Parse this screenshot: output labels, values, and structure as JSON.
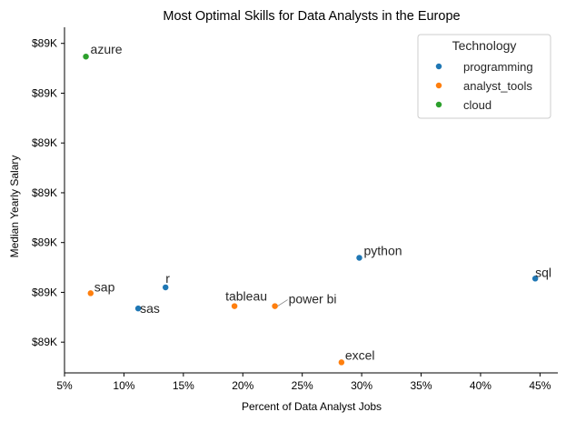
{
  "chart_data": {
    "type": "scatter",
    "title": "Most Optimal Skills for Data Analysts in the Europe",
    "xlabel": "Percent of Data Analyst Jobs",
    "ylabel": "Median Yearly Salary",
    "xlim": [
      5,
      46.5
    ],
    "x_ticks": [
      5,
      10,
      15,
      20,
      25,
      30,
      35,
      40,
      45
    ],
    "x_tick_labels": [
      "5%",
      "10%",
      "15%",
      "20%",
      "25%",
      "30%",
      "35%",
      "40%",
      "45%"
    ],
    "ylim": [
      0,
      100
    ],
    "y_ticks": [
      10.5,
      27.5,
      44.5,
      61.5,
      78.5,
      95.5,
      112.5
    ],
    "y_tick_labels": [
      "$89K",
      "$89K",
      "$89K",
      "$89K",
      "$89K",
      "$89K",
      "$89K"
    ],
    "y_ticks_note": "y tick labels all read $89K; values are relative positions within that range",
    "grid": false,
    "legend": {
      "title": "Technology",
      "position": "top-right",
      "entries": [
        {
          "name": "programming",
          "color": "#1f77b4"
        },
        {
          "name": "analyst_tools",
          "color": "#ff7f0e"
        },
        {
          "name": "cloud",
          "color": "#2ca02c"
        }
      ]
    },
    "points": [
      {
        "label": "azure",
        "x": 6.8,
        "y": 108.0,
        "category": "cloud"
      },
      {
        "label": "python",
        "x": 29.8,
        "y": 39.3,
        "category": "programming"
      },
      {
        "label": "sql",
        "x": 44.6,
        "y": 32.2,
        "category": "programming"
      },
      {
        "label": "r",
        "x": 13.5,
        "y": 29.2,
        "category": "programming"
      },
      {
        "label": "sap",
        "x": 7.2,
        "y": 27.2,
        "category": "analyst_tools"
      },
      {
        "label": "sas",
        "x": 11.2,
        "y": 22.0,
        "category": "programming"
      },
      {
        "label": "tableau",
        "x": 19.3,
        "y": 22.8,
        "category": "analyst_tools"
      },
      {
        "label": "power bi",
        "x": 22.7,
        "y": 22.8,
        "category": "analyst_tools"
      },
      {
        "label": "excel",
        "x": 28.3,
        "y": 3.6,
        "category": "analyst_tools"
      }
    ]
  }
}
